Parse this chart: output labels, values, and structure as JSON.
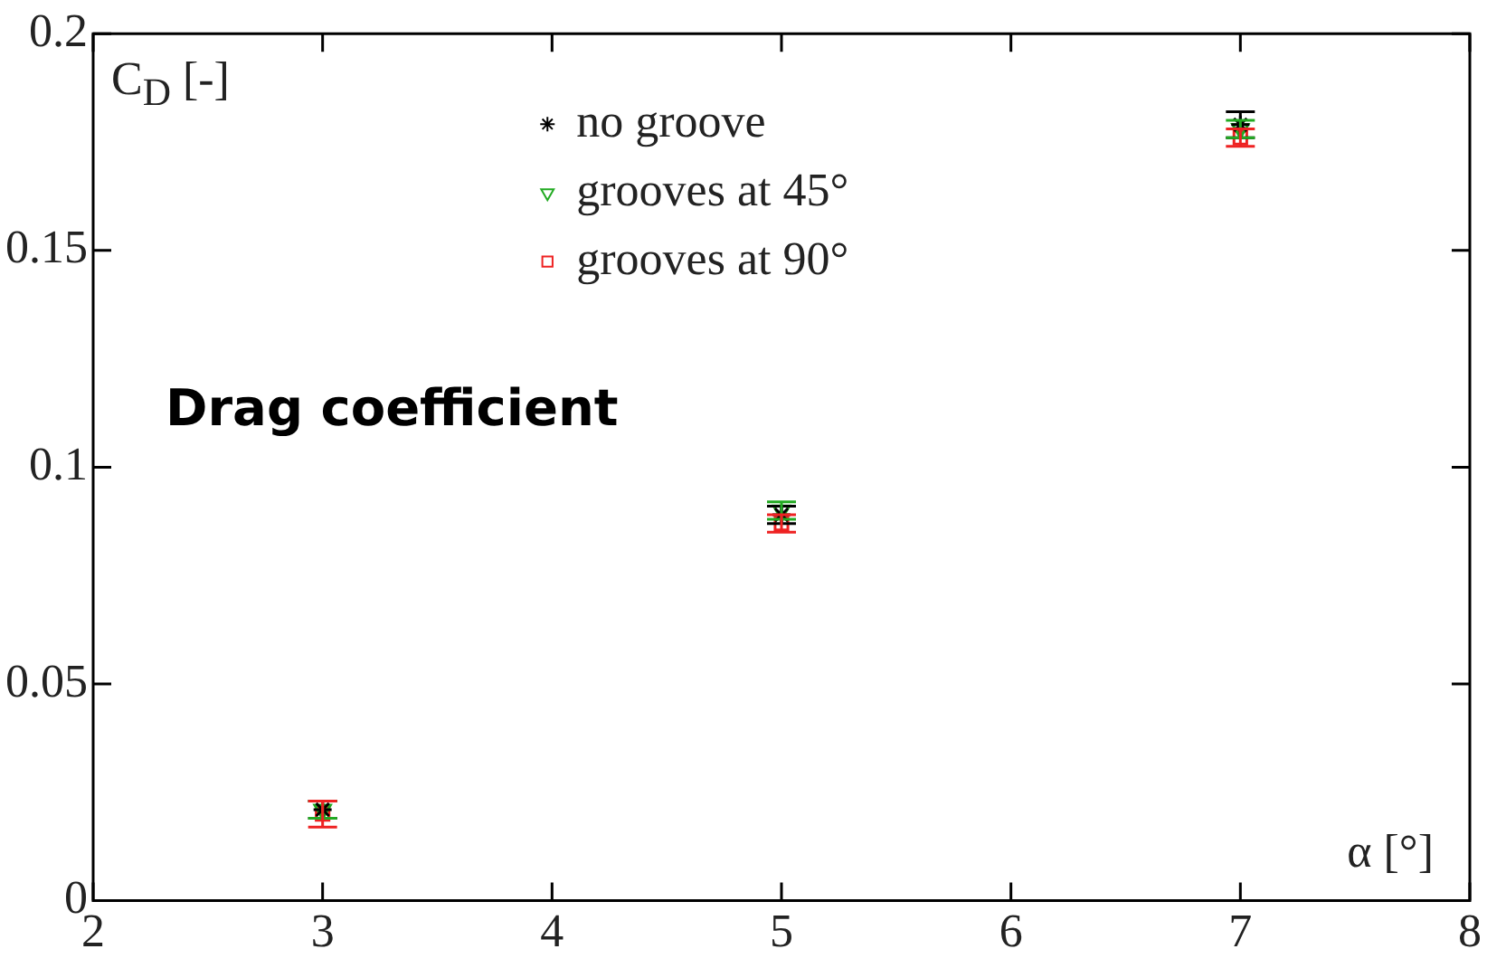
{
  "chart_data": {
    "type": "scatter",
    "xlabel": "α [°]",
    "ylabel": "C$_{D}$ [-]",
    "annotations": [
      "Drag coefficient"
    ],
    "xlim": [
      2,
      8
    ],
    "xticks": [
      2,
      3,
      4,
      5,
      6,
      7,
      8
    ],
    "ylim": [
      0,
      0.2
    ],
    "yticks": [
      0,
      0.05,
      0.1,
      0.15,
      0.2
    ],
    "grid": false,
    "legend": "top",
    "series": [
      {
        "name": "no groove",
        "color": "#000000",
        "marker": "cross",
        "x": [
          3,
          5,
          7
        ],
        "values": [
          0.021,
          0.089,
          0.179
        ],
        "errors": [
          0.002,
          0.002,
          0.003
        ]
      },
      {
        "name": "grooves at 45°",
        "color": "#22aa22",
        "marker": "triangle",
        "x": [
          3,
          5,
          7
        ],
        "values": [
          0.021,
          0.09,
          0.178
        ],
        "errors": [
          0.002,
          0.002,
          0.002
        ]
      },
      {
        "name": "grooves at 90°",
        "color": "#ee2222",
        "marker": "square",
        "x": [
          3,
          5,
          7
        ],
        "values": [
          0.02,
          0.087,
          0.176
        ],
        "errors": [
          0.003,
          0.002,
          0.002
        ]
      }
    ]
  }
}
